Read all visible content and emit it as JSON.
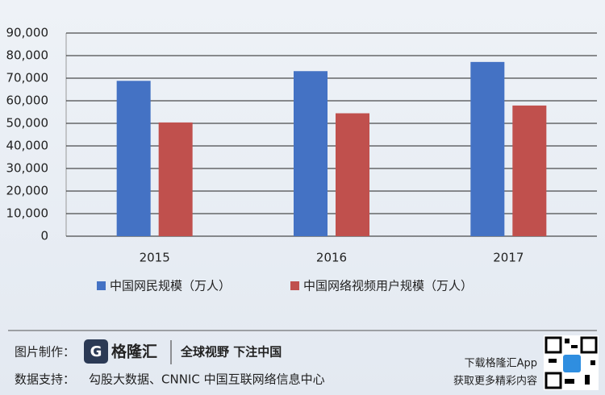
{
  "chart_data": {
    "type": "bar",
    "categories": [
      "2015",
      "2016",
      "2017"
    ],
    "series": [
      {
        "name": "中国网民规模（万人）",
        "color": "#4472c4",
        "values": [
          68826,
          73125,
          77198
        ]
      },
      {
        "name": "中国网络视频用户规模（万人）",
        "color": "#c0504d",
        "values": [
          50391,
          54455,
          57892
        ]
      }
    ],
    "ylim": [
      0,
      90000
    ],
    "yticks": [
      0,
      {
        "value": 10000,
        "label": "10,000"
      },
      {
        "value": 20000,
        "label": "20,000"
      },
      {
        "value": 30000,
        "label": "30,000"
      },
      {
        "value": 40000,
        "label": "40,000"
      },
      {
        "value": 50000,
        "label": "50,000"
      },
      {
        "value": 60000,
        "label": "60,000"
      },
      {
        "value": 70000,
        "label": "70,000"
      },
      {
        "value": 80000,
        "label": "80,000"
      },
      {
        "value": 90000,
        "label": "90,000"
      }
    ],
    "grid": true,
    "legend": "bottom"
  },
  "footer": {
    "maker_label": "图片制作：",
    "brand": "格隆汇",
    "slogan": "全球视野 下注中国",
    "source_label": "数据支持：",
    "source": "勾股大数据、CNNIC 中国互联网络信息中心",
    "app_line1": "下载格隆汇App",
    "app_line2": "获取更多精彩内容"
  }
}
